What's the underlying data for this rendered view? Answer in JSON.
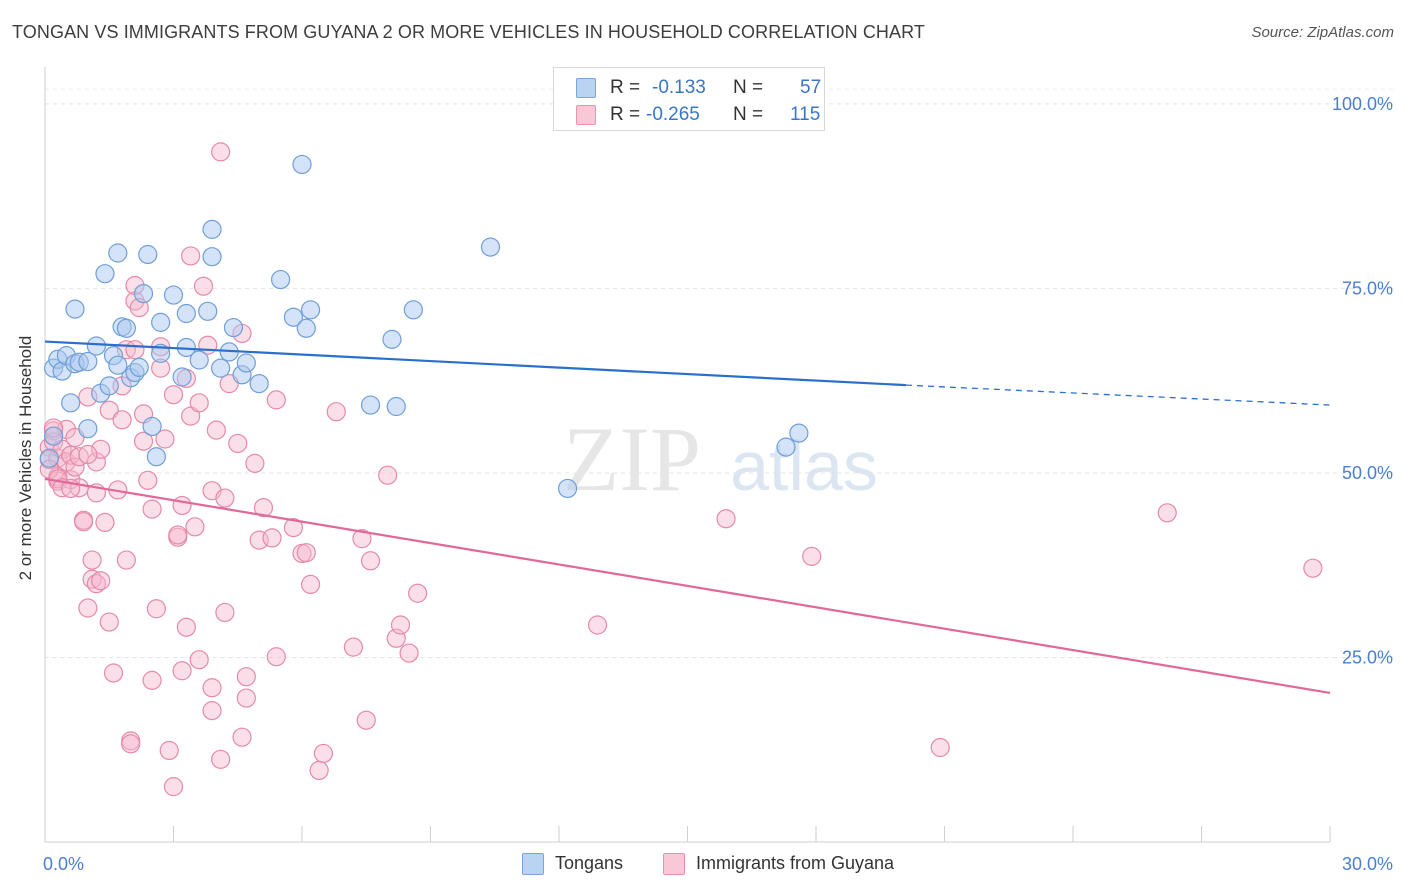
{
  "header": {
    "title": "TONGAN VS IMMIGRANTS FROM GUYANA 2 OR MORE VEHICLES IN HOUSEHOLD CORRELATION CHART",
    "source": "Source: ZipAtlas.com"
  },
  "legend": {
    "r_label": "R =",
    "n_label": "N =",
    "series": [
      {
        "r": "-0.133",
        "n": "57"
      },
      {
        "r": "-0.265",
        "n": "115"
      }
    ]
  },
  "watermark": {
    "zip": "ZIP",
    "atlas": "atlas"
  },
  "chart_data": {
    "type": "scatter",
    "title": "TONGAN VS IMMIGRANTS FROM GUYANA 2 OR MORE VEHICLES IN HOUSEHOLD CORRELATION CHART",
    "xlabel": "",
    "ylabel": "2 or more Vehicles in Household",
    "xlim": [
      0,
      30
    ],
    "ylim": [
      0,
      105
    ],
    "x_ticks": [
      "0.0%",
      "30.0%"
    ],
    "y_ticks": [
      {
        "value": 25,
        "label": "25.0%"
      },
      {
        "value": 50,
        "label": "50.0%"
      },
      {
        "value": 75,
        "label": "75.0%"
      },
      {
        "value": 100,
        "label": "100.0%"
      }
    ],
    "grid": true,
    "legend_position": "bottom-center",
    "colors": {
      "tongans_fill": "#a9c7ef",
      "tongans_stroke": "#6f9fd8",
      "tongans_line": "#2a6fcc",
      "guyana_fill": "#f6b9cc",
      "guyana_stroke": "#e58aa9",
      "guyana_line": "#e2689a",
      "axis_text": "#4a7fcf"
    },
    "series": [
      {
        "name": "Tongans",
        "r": -0.133,
        "n": 57,
        "trend": {
          "x0": 0,
          "y0": 67.8,
          "x1": 20.1,
          "y1": 61.9,
          "dash_to_x": 30,
          "dash_to_y": 59.2
        },
        "points": [
          [
            0.2,
            64.2
          ],
          [
            0.3,
            65.4
          ],
          [
            0.4,
            63.8
          ],
          [
            0.5,
            65.9
          ],
          [
            0.6,
            59.5
          ],
          [
            0.7,
            64.8
          ],
          [
            0.7,
            72.2
          ],
          [
            0.8,
            65.0
          ],
          [
            1.0,
            65.1
          ],
          [
            1.0,
            56.0
          ],
          [
            1.2,
            67.2
          ],
          [
            1.3,
            60.8
          ],
          [
            1.4,
            77.0
          ],
          [
            1.5,
            61.8
          ],
          [
            1.6,
            65.9
          ],
          [
            1.7,
            64.6
          ],
          [
            1.7,
            79.8
          ],
          [
            1.8,
            69.8
          ],
          [
            1.9,
            69.6
          ],
          [
            2.0,
            62.9
          ],
          [
            2.1,
            63.6
          ],
          [
            2.2,
            64.3
          ],
          [
            2.3,
            74.3
          ],
          [
            2.4,
            79.6
          ],
          [
            2.5,
            56.3
          ],
          [
            2.6,
            52.2
          ],
          [
            2.7,
            66.2
          ],
          [
            2.7,
            70.4
          ],
          [
            3.0,
            74.1
          ],
          [
            3.2,
            63.0
          ],
          [
            3.3,
            67.0
          ],
          [
            3.3,
            71.6
          ],
          [
            3.6,
            65.3
          ],
          [
            3.8,
            71.9
          ],
          [
            3.9,
            79.3
          ],
          [
            3.9,
            83.0
          ],
          [
            4.1,
            64.2
          ],
          [
            4.3,
            66.4
          ],
          [
            4.4,
            69.7
          ],
          [
            4.6,
            63.3
          ],
          [
            4.7,
            64.9
          ],
          [
            5.0,
            62.1
          ],
          [
            5.5,
            76.2
          ],
          [
            5.8,
            71.1
          ],
          [
            6.0,
            91.8
          ],
          [
            6.1,
            69.6
          ],
          [
            6.2,
            72.1
          ],
          [
            7.6,
            59.2
          ],
          [
            8.1,
            68.1
          ],
          [
            8.2,
            59.0
          ],
          [
            8.6,
            72.1
          ],
          [
            10.4,
            80.6
          ],
          [
            12.2,
            47.9
          ],
          [
            17.3,
            53.5
          ],
          [
            17.6,
            55.4
          ],
          [
            0.1,
            52.0
          ],
          [
            0.2,
            55.0
          ]
        ]
      },
      {
        "name": "Immigrants from Guyana",
        "r": -0.265,
        "n": 115,
        "trend": {
          "x0": 0,
          "y0": 49.2,
          "x1": 30,
          "y1": 20.2
        },
        "points": [
          [
            0.1,
            53.5
          ],
          [
            0.1,
            51.8
          ],
          [
            0.2,
            55.7
          ],
          [
            0.2,
            54.2
          ],
          [
            0.3,
            52.0
          ],
          [
            0.3,
            49.5
          ],
          [
            0.3,
            48.9
          ],
          [
            0.4,
            53.2
          ],
          [
            0.5,
            55.9
          ],
          [
            0.5,
            51.5
          ],
          [
            0.6,
            52.4
          ],
          [
            0.6,
            49.1
          ],
          [
            0.7,
            54.8
          ],
          [
            0.7,
            50.8
          ],
          [
            0.8,
            48.0
          ],
          [
            0.8,
            52.2
          ],
          [
            0.9,
            43.6
          ],
          [
            0.9,
            43.4
          ],
          [
            1.0,
            31.7
          ],
          [
            1.0,
            60.3
          ],
          [
            1.1,
            35.6
          ],
          [
            1.1,
            38.2
          ],
          [
            1.2,
            35.0
          ],
          [
            1.2,
            51.5
          ],
          [
            1.3,
            53.2
          ],
          [
            1.3,
            35.4
          ],
          [
            1.4,
            43.3
          ],
          [
            1.5,
            29.8
          ],
          [
            1.5,
            58.5
          ],
          [
            1.6,
            22.9
          ],
          [
            1.7,
            47.7
          ],
          [
            1.8,
            61.8
          ],
          [
            1.8,
            57.2
          ],
          [
            1.9,
            38.2
          ],
          [
            1.9,
            66.7
          ],
          [
            2.0,
            13.7
          ],
          [
            2.0,
            13.3
          ],
          [
            2.1,
            73.3
          ],
          [
            2.1,
            66.7
          ],
          [
            2.1,
            75.4
          ],
          [
            2.2,
            72.4
          ],
          [
            2.3,
            58.0
          ],
          [
            2.3,
            54.3
          ],
          [
            2.4,
            49.0
          ],
          [
            2.5,
            21.9
          ],
          [
            2.5,
            45.1
          ],
          [
            2.6,
            31.6
          ],
          [
            2.7,
            64.2
          ],
          [
            2.7,
            67.1
          ],
          [
            2.8,
            54.6
          ],
          [
            2.9,
            12.4
          ],
          [
            3.0,
            60.6
          ],
          [
            3.0,
            7.5
          ],
          [
            3.1,
            41.3
          ],
          [
            3.1,
            41.6
          ],
          [
            3.2,
            45.6
          ],
          [
            3.2,
            23.2
          ],
          [
            3.3,
            29.1
          ],
          [
            3.3,
            62.8
          ],
          [
            3.4,
            79.4
          ],
          [
            3.4,
            57.7
          ],
          [
            3.5,
            42.7
          ],
          [
            3.6,
            24.7
          ],
          [
            3.6,
            59.5
          ],
          [
            3.7,
            75.3
          ],
          [
            3.8,
            67.3
          ],
          [
            3.9,
            47.6
          ],
          [
            3.9,
            20.9
          ],
          [
            3.9,
            17.8
          ],
          [
            4.0,
            55.8
          ],
          [
            4.1,
            11.2
          ],
          [
            4.1,
            93.5
          ],
          [
            4.2,
            46.6
          ],
          [
            4.2,
            31.1
          ],
          [
            4.3,
            62.1
          ],
          [
            4.5,
            54.0
          ],
          [
            4.6,
            14.2
          ],
          [
            4.6,
            68.9
          ],
          [
            4.7,
            19.5
          ],
          [
            4.7,
            22.4
          ],
          [
            4.9,
            51.3
          ],
          [
            5.0,
            40.9
          ],
          [
            5.1,
            45.3
          ],
          [
            5.3,
            41.2
          ],
          [
            5.4,
            59.9
          ],
          [
            5.4,
            25.1
          ],
          [
            5.8,
            42.6
          ],
          [
            6.0,
            39.1
          ],
          [
            6.1,
            39.2
          ],
          [
            6.2,
            34.9
          ],
          [
            6.4,
            9.7
          ],
          [
            6.5,
            12.0
          ],
          [
            6.8,
            58.3
          ],
          [
            7.2,
            26.4
          ],
          [
            7.4,
            41.1
          ],
          [
            7.5,
            16.5
          ],
          [
            7.6,
            38.1
          ],
          [
            8.0,
            49.7
          ],
          [
            8.2,
            27.6
          ],
          [
            8.3,
            29.4
          ],
          [
            8.5,
            25.6
          ],
          [
            8.7,
            33.7
          ],
          [
            12.9,
            29.4
          ],
          [
            15.9,
            43.8
          ],
          [
            17.9,
            38.7
          ],
          [
            20.9,
            12.8
          ],
          [
            26.2,
            44.6
          ],
          [
            29.6,
            37.1
          ],
          [
            0.1,
            50.5
          ],
          [
            0.2,
            56.1
          ],
          [
            0.3,
            49.2
          ],
          [
            0.4,
            48.0
          ],
          [
            0.6,
            47.9
          ],
          [
            1.0,
            52.5
          ],
          [
            1.2,
            47.3
          ]
        ]
      }
    ]
  }
}
